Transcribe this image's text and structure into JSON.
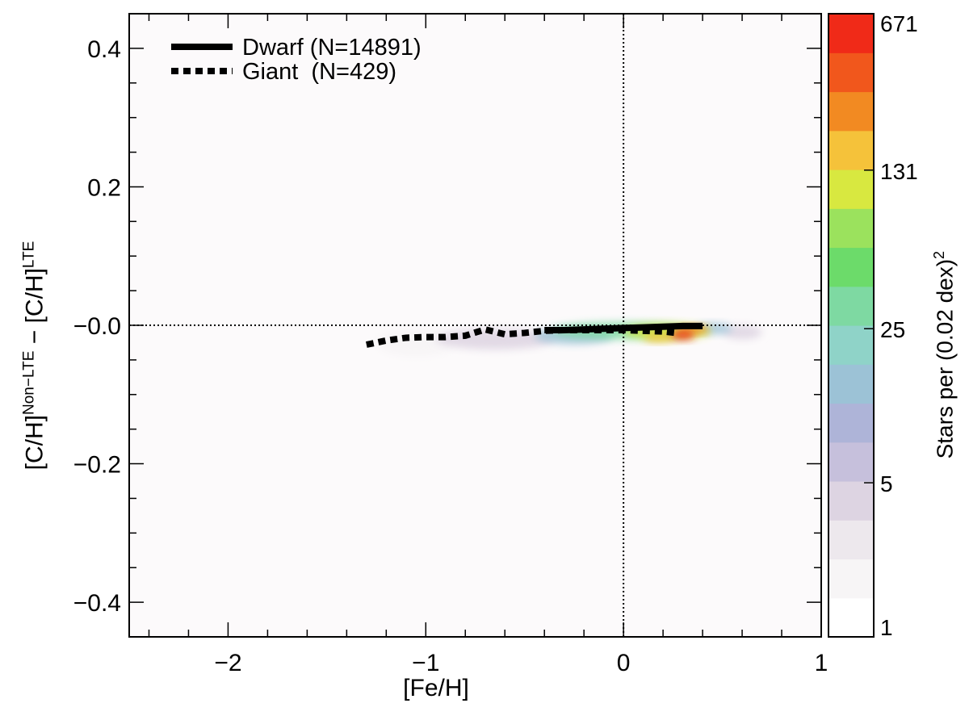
{
  "chart_data": {
    "type": "heatmap",
    "xlabel": "[Fe/H]",
    "ylabel": {
      "base1": "[C/H]",
      "sup1": "Non−LTE",
      "mid": " − [C/H]",
      "sup2": "LTE"
    },
    "xlim": [
      -2.5,
      1.0
    ],
    "ylim": [
      -0.45,
      0.45
    ],
    "x_ticks": [
      {
        "v": -2,
        "label": "−2"
      },
      {
        "v": -1,
        "label": "−1"
      },
      {
        "v": 0,
        "label": "0"
      },
      {
        "v": 1,
        "label": "1"
      }
    ],
    "y_ticks": [
      {
        "v": 0.4,
        "label": "0.4"
      },
      {
        "v": 0.2,
        "label": "0.2"
      },
      {
        "v": 0.0,
        "label": "−0.0"
      },
      {
        "v": -0.2,
        "label": "−0.2"
      },
      {
        "v": -0.4,
        "label": "−0.4"
      }
    ],
    "reference_lines": {
      "x": 0,
      "y": 0,
      "style": "dotted"
    },
    "series": [
      {
        "name": "Dwarf (N=14891)",
        "style": "solid",
        "x": [
          -0.4,
          -0.3,
          -0.2,
          -0.1,
          0.0,
          0.1,
          0.2,
          0.3,
          0.4
        ],
        "y": [
          -0.007,
          -0.007,
          -0.006,
          -0.005,
          -0.004,
          -0.003,
          -0.002,
          -0.001,
          -0.001
        ]
      },
      {
        "name": "Giant  (N=429)",
        "style": "dotted",
        "x": [
          -1.3,
          -1.2,
          -1.1,
          -1.0,
          -0.9,
          -0.8,
          -0.7,
          -0.6,
          -0.5,
          -0.4,
          -0.3,
          -0.2,
          -0.1,
          0.0,
          0.1,
          0.2,
          0.27
        ],
        "y": [
          -0.028,
          -0.022,
          -0.018,
          -0.017,
          -0.017,
          -0.015,
          -0.006,
          -0.013,
          -0.011,
          -0.008,
          -0.007,
          -0.007,
          -0.007,
          -0.007,
          -0.008,
          -0.009,
          -0.011
        ]
      }
    ],
    "density_blobs": [
      {
        "x": 0.0,
        "y": -0.008,
        "sx": 0.36,
        "sy": 0.012,
        "level": 0.55
      },
      {
        "x": 0.22,
        "y": -0.009,
        "sx": 0.22,
        "sy": 0.011,
        "level": 0.72
      },
      {
        "x": 0.3,
        "y": -0.014,
        "sx": 0.06,
        "sy": 0.007,
        "level": 0.98
      },
      {
        "x": 0.35,
        "y": -0.006,
        "sx": 0.08,
        "sy": 0.006,
        "level": 0.85
      },
      {
        "x": 0.18,
        "y": -0.018,
        "sx": 0.08,
        "sy": 0.006,
        "level": 0.8
      },
      {
        "x": -0.25,
        "y": -0.015,
        "sx": 0.2,
        "sy": 0.012,
        "level": 0.42
      },
      {
        "x": -0.65,
        "y": -0.02,
        "sx": 0.3,
        "sy": 0.015,
        "level": 0.22
      },
      {
        "x": -1.05,
        "y": -0.025,
        "sx": 0.2,
        "sy": 0.02,
        "level": 0.08
      },
      {
        "x": 0.6,
        "y": -0.01,
        "sx": 0.1,
        "sy": 0.01,
        "level": 0.2
      },
      {
        "x": 0.45,
        "y": -0.005,
        "sx": 0.1,
        "sy": 0.008,
        "level": 0.4
      }
    ],
    "colorbar": {
      "label_prefix": "Stars per (0.02 dex)",
      "label_sup": "2",
      "scale": "log",
      "min": 1,
      "max": 671,
      "ticks": [
        {
          "v": 1,
          "label": "1"
        },
        {
          "v": 5,
          "label": "5"
        },
        {
          "v": 25,
          "label": "25"
        },
        {
          "v": 131,
          "label": "131"
        },
        {
          "v": 671,
          "label": "671"
        }
      ],
      "colors": [
        "#ffffff",
        "#f7f5f6",
        "#ede8ed",
        "#ddd4e2",
        "#c6c0dc",
        "#aeb4d8",
        "#9cc2d6",
        "#8fd3c8",
        "#7ed9a2",
        "#6cdb6a",
        "#9be25d",
        "#d8e840",
        "#f5c23a",
        "#f28a22",
        "#f1571c",
        "#f02a18"
      ]
    },
    "legend": {
      "position": "top-left"
    },
    "grid": false
  }
}
